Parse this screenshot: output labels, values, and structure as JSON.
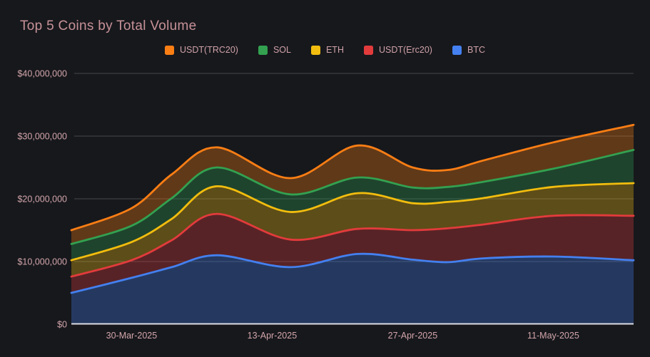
{
  "chart_data": {
    "type": "area",
    "stacked": true,
    "smooth": true,
    "title": "Top 5 Coins by Total Volume",
    "ylabel": "",
    "xlabel": "",
    "ylim_usd": [
      0,
      40000000
    ],
    "grid": true,
    "legend_position": "top-center",
    "y_ticks": [
      {
        "value_musd": 40,
        "label": "$40,000,000"
      },
      {
        "value_musd": 30,
        "label": "$30,000,000"
      },
      {
        "value_musd": 20,
        "label": "$20,000,000"
      },
      {
        "value_musd": 10,
        "label": "$10,000,000"
      },
      {
        "value_musd": 0,
        "label": "$0"
      }
    ],
    "x_ticks": [
      {
        "day": 6,
        "label": "30-Mar-2025"
      },
      {
        "day": 20,
        "label": "13-Apr-2025"
      },
      {
        "day": 34,
        "label": "27-Apr-2025"
      },
      {
        "day": 48,
        "label": "11-May-2025"
      }
    ],
    "x_range_days": [
      0,
      56
    ],
    "sample_days": [
      0,
      6,
      10,
      14.5,
      21.8,
      28.5,
      34,
      37.5,
      41,
      48,
      56
    ],
    "series": [
      {
        "name": "BTC",
        "color": "#4480f0",
        "values_musd": [
          5.0,
          7.4,
          9.1,
          11.0,
          9.1,
          11.2,
          10.3,
          9.9,
          10.5,
          10.8,
          10.2
        ]
      },
      {
        "name": "USDT(Erc20)",
        "color": "#e23b3c",
        "values_musd": [
          2.6,
          2.8,
          4.3,
          6.6,
          4.4,
          4.0,
          4.7,
          5.4,
          5.4,
          6.5,
          7.1
        ]
      },
      {
        "name": "ETH",
        "color": "#f2bd0e",
        "values_musd": [
          2.6,
          2.9,
          3.4,
          4.4,
          4.4,
          5.7,
          4.3,
          4.2,
          4.2,
          4.6,
          5.2
        ]
      },
      {
        "name": "SOL",
        "color": "#33a150",
        "values_musd": [
          2.6,
          2.6,
          3.3,
          3.0,
          2.8,
          2.5,
          2.5,
          2.4,
          2.6,
          2.9,
          5.3
        ]
      },
      {
        "name": "USDT(TRC20)",
        "color": "#fb7e14",
        "values_musd": [
          2.2,
          2.8,
          3.8,
          3.2,
          2.6,
          5.1,
          3.2,
          2.7,
          3.4,
          4.2,
          4.0
        ]
      }
    ],
    "legend_order": [
      "USDT(TRC20)",
      "SOL",
      "ETH",
      "USDT(Erc20)",
      "BTC"
    ],
    "colors": {
      "background": "#17181c",
      "gridline": "#46474c",
      "zero_axis_line": "#dcdce2",
      "title_text": "#c69298",
      "axis_text": "#d2a6ab",
      "legend_text": "#cfa2a8"
    }
  }
}
